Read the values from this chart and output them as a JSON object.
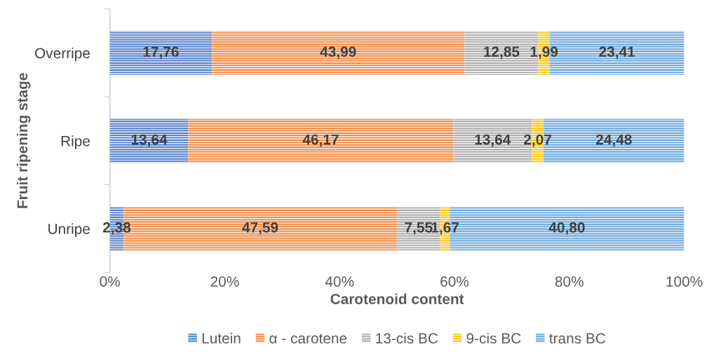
{
  "chart_data": {
    "type": "bar",
    "orientation": "horizontal",
    "stacked": true,
    "xlabel": "Carotenoid content",
    "ylabel": "Fruit ripening stage",
    "categories": [
      "Overripe",
      "Ripe",
      "Unripe"
    ],
    "series": [
      {
        "name": "Lutein",
        "color": "#4472c4",
        "values": [
          17.76,
          13.64,
          2.38
        ],
        "value_labels": [
          "17,76",
          "13,64",
          "2,38"
        ]
      },
      {
        "name": "α - carotene",
        "color": "#ed7d31",
        "values": [
          43.99,
          46.17,
          47.59
        ],
        "value_labels": [
          "43,99",
          "46,17",
          "47,59"
        ]
      },
      {
        "name": "13-cis BC",
        "color": "#a5a5a5",
        "values": [
          12.85,
          13.64,
          7.55
        ],
        "value_labels": [
          "12,85",
          "13,64",
          "7,55"
        ]
      },
      {
        "name": "9-cis BC",
        "color": "#ffc000",
        "values": [
          1.99,
          2.07,
          1.67
        ],
        "value_labels": [
          "1,99",
          "2,07",
          "1,67"
        ]
      },
      {
        "name": "trans BC",
        "color": "#5b9bd5",
        "values": [
          23.41,
          24.48,
          40.8
        ],
        "value_labels": [
          "23,41",
          "24,48",
          "40,80"
        ]
      }
    ],
    "xlim": [
      0,
      100
    ],
    "xticks": [
      {
        "value": 0,
        "label": "0%"
      },
      {
        "value": 20,
        "label": "20%"
      },
      {
        "value": 40,
        "label": "40%"
      },
      {
        "value": 60,
        "label": "60%"
      },
      {
        "value": 80,
        "label": "80%"
      },
      {
        "value": 100,
        "label": "100%"
      }
    ],
    "grid": false,
    "legend": "bottom"
  }
}
